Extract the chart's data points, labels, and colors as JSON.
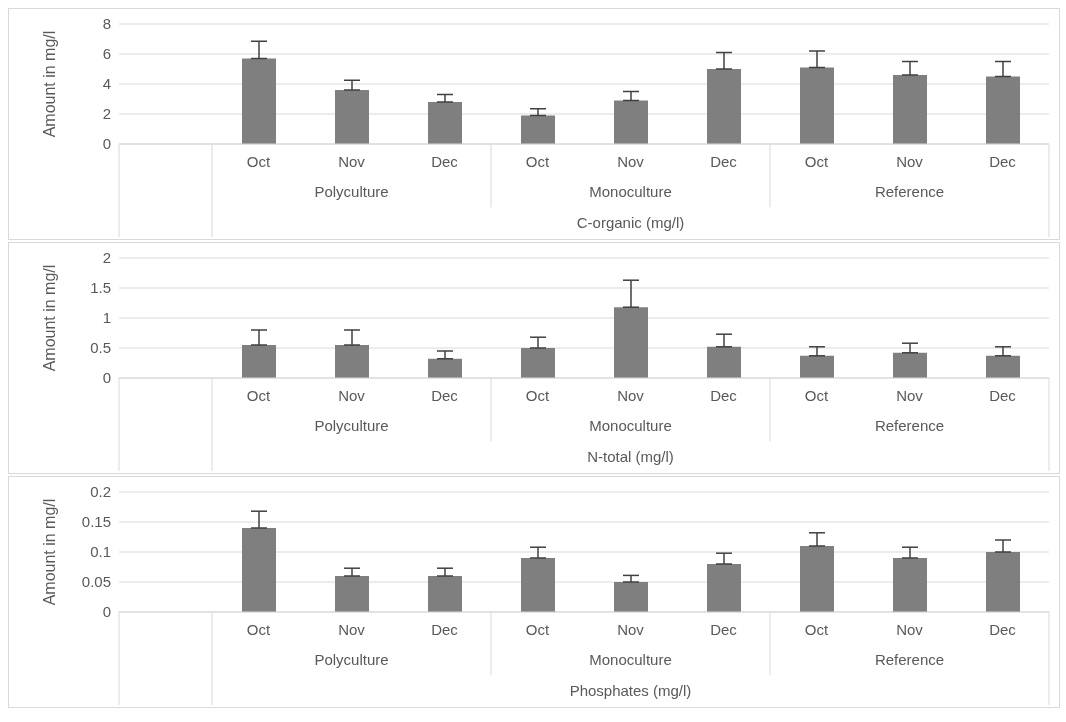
{
  "chart_data": [
    {
      "type": "bar",
      "ylabel": "Amount in mg/l",
      "xlabel": "C-organic (mg/l)",
      "categories": [
        null,
        "Oct",
        "Nov",
        "Dec",
        "Oct",
        "Nov",
        "Dec",
        "Oct",
        "Nov",
        "Dec"
      ],
      "annotations": [
        "Polyculture",
        "Monoculture",
        "Reference"
      ],
      "color": "#7f7f7f",
      "values": [
        null,
        5.7,
        3.6,
        2.8,
        1.9,
        2.9,
        5.0,
        5.1,
        4.6,
        4.5
      ],
      "errors": [
        null,
        [
          5.7,
          6.85
        ],
        [
          3.6,
          4.25
        ],
        [
          2.8,
          3.3
        ],
        [
          1.9,
          2.35
        ],
        [
          2.9,
          3.5
        ],
        [
          5.0,
          6.1
        ],
        [
          5.1,
          6.2
        ],
        [
          4.6,
          5.5
        ],
        [
          4.5,
          5.5
        ]
      ],
      "ylim": [
        0,
        8
      ],
      "yticks": [
        0,
        2,
        4,
        6,
        8
      ],
      "grid": "y",
      "legend": false
    },
    {
      "type": "bar",
      "ylabel": "Amount in mg/l",
      "xlabel": "N-total (mg/l)",
      "categories": [
        null,
        "Oct",
        "Nov",
        "Dec",
        "Oct",
        "Nov",
        "Dec",
        "Oct",
        "Nov",
        "Dec"
      ],
      "annotations": [
        "Polyculture",
        "Monoculture",
        "Reference"
      ],
      "color": "#7f7f7f",
      "values": [
        null,
        0.55,
        0.55,
        0.32,
        0.5,
        1.18,
        0.52,
        0.37,
        0.42,
        0.37
      ],
      "errors": [
        null,
        [
          0.55,
          0.8
        ],
        [
          0.55,
          0.8
        ],
        [
          0.32,
          0.45
        ],
        [
          0.5,
          0.68
        ],
        [
          1.18,
          1.63
        ],
        [
          0.52,
          0.73
        ],
        [
          0.37,
          0.52
        ],
        [
          0.42,
          0.58
        ],
        [
          0.37,
          0.52
        ]
      ],
      "ylim": [
        0,
        2
      ],
      "yticks": [
        0,
        0.5,
        1,
        1.5,
        2
      ],
      "grid": "y",
      "legend": false
    },
    {
      "type": "bar",
      "ylabel": "Amount in mg/l",
      "xlabel": "Phosphates (mg/l)",
      "categories": [
        null,
        "Oct",
        "Nov",
        "Dec",
        "Oct",
        "Nov",
        "Dec",
        "Oct",
        "Nov",
        "Dec"
      ],
      "annotations": [
        "Polyculture",
        "Monoculture",
        "Reference"
      ],
      "color": "#7f7f7f",
      "values": [
        null,
        0.14,
        0.06,
        0.06,
        0.09,
        0.05,
        0.08,
        0.11,
        0.09,
        0.1
      ],
      "errors": [
        null,
        [
          0.14,
          0.168
        ],
        [
          0.06,
          0.073
        ],
        [
          0.06,
          0.073
        ],
        [
          0.09,
          0.108
        ],
        [
          0.05,
          0.061
        ],
        [
          0.08,
          0.098
        ],
        [
          0.11,
          0.132
        ],
        [
          0.09,
          0.108
        ],
        [
          0.1,
          0.12
        ]
      ],
      "ylim": [
        0,
        0.2
      ],
      "yticks": [
        0,
        0.05,
        0.1,
        0.15,
        0.2
      ],
      "grid": "y",
      "legend": false
    }
  ]
}
